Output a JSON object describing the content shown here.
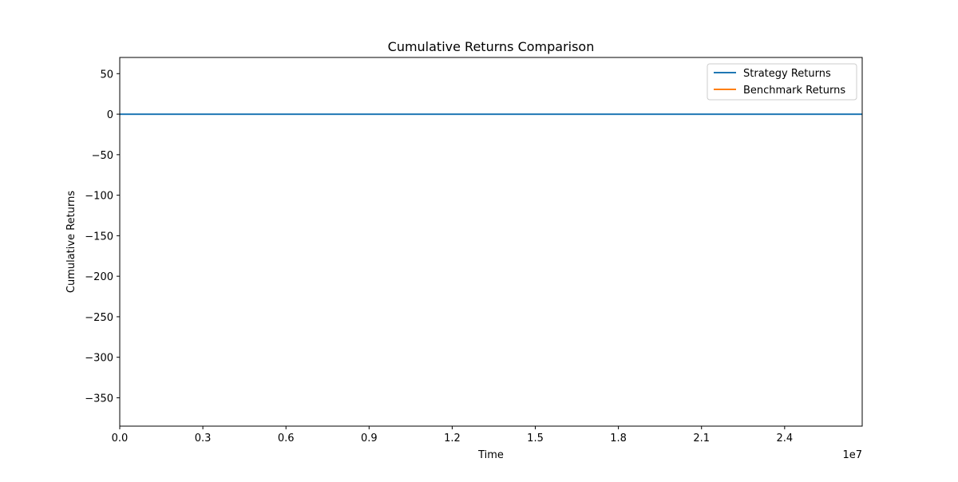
{
  "chart_data": {
    "type": "line",
    "title": "Cumulative Returns Comparison",
    "xlabel": "Time",
    "ylabel": "Cumulative Returns",
    "x_offset_label": "1e7",
    "xlim": [
      0.0,
      2.68
    ],
    "ylim": [
      -385,
      70
    ],
    "x_ticks": [
      {
        "value": 0.0,
        "label": "0.0"
      },
      {
        "value": 0.3,
        "label": "0.3"
      },
      {
        "value": 0.6,
        "label": "0.6"
      },
      {
        "value": 0.9,
        "label": "0.9"
      },
      {
        "value": 1.2,
        "label": "1.2"
      },
      {
        "value": 1.5,
        "label": "1.5"
      },
      {
        "value": 1.8,
        "label": "1.8"
      },
      {
        "value": 2.1,
        "label": "2.1"
      },
      {
        "value": 2.4,
        "label": "2.4"
      }
    ],
    "y_ticks": [
      {
        "value": 50,
        "label": "50"
      },
      {
        "value": 0,
        "label": "0"
      },
      {
        "value": -50,
        "label": "−50"
      },
      {
        "value": -100,
        "label": "−100"
      },
      {
        "value": -150,
        "label": "−150"
      },
      {
        "value": -200,
        "label": "−200"
      },
      {
        "value": -250,
        "label": "−250"
      },
      {
        "value": -300,
        "label": "−300"
      },
      {
        "value": -350,
        "label": "−350"
      }
    ],
    "grid": false,
    "legend_position": "top-right",
    "series": [
      {
        "name": "Strategy Returns",
        "color": "#1f77b4",
        "x": [
          0.0,
          0.3,
          0.6,
          0.9,
          1.2,
          1.5,
          1.8,
          2.1,
          2.4,
          2.68
        ],
        "y": [
          0,
          0,
          0,
          0,
          0,
          0,
          0,
          0,
          0,
          0
        ]
      },
      {
        "name": "Benchmark Returns",
        "color": "#ff7f0e",
        "x": [],
        "y": []
      }
    ]
  }
}
